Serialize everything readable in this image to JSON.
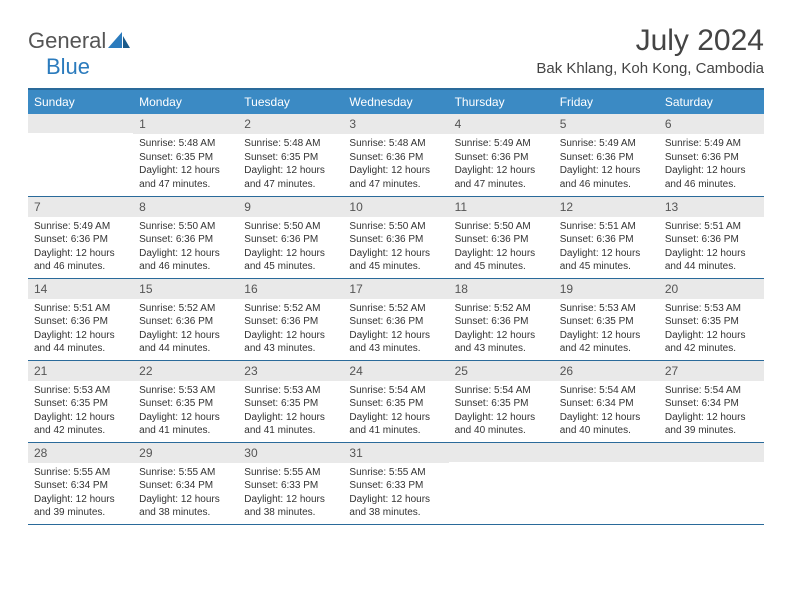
{
  "logo": {
    "general": "General",
    "blue": "Blue"
  },
  "title": "July 2024",
  "location": "Bak Khlang, Koh Kong, Cambodia",
  "weekdays": [
    "Sunday",
    "Monday",
    "Tuesday",
    "Wednesday",
    "Thursday",
    "Friday",
    "Saturday"
  ],
  "colors": {
    "header_bg": "#3b8ac4",
    "header_border": "#2a6a9a",
    "daynum_bg": "#e9e9e9",
    "text": "#333333",
    "logo_gray": "#555555",
    "logo_blue": "#2b7bbd"
  },
  "weeks": [
    [
      {
        "num": "",
        "sunrise": "",
        "sunset": "",
        "daylight": ""
      },
      {
        "num": "1",
        "sunrise": "Sunrise: 5:48 AM",
        "sunset": "Sunset: 6:35 PM",
        "daylight": "Daylight: 12 hours and 47 minutes."
      },
      {
        "num": "2",
        "sunrise": "Sunrise: 5:48 AM",
        "sunset": "Sunset: 6:35 PM",
        "daylight": "Daylight: 12 hours and 47 minutes."
      },
      {
        "num": "3",
        "sunrise": "Sunrise: 5:48 AM",
        "sunset": "Sunset: 6:36 PM",
        "daylight": "Daylight: 12 hours and 47 minutes."
      },
      {
        "num": "4",
        "sunrise": "Sunrise: 5:49 AM",
        "sunset": "Sunset: 6:36 PM",
        "daylight": "Daylight: 12 hours and 47 minutes."
      },
      {
        "num": "5",
        "sunrise": "Sunrise: 5:49 AM",
        "sunset": "Sunset: 6:36 PM",
        "daylight": "Daylight: 12 hours and 46 minutes."
      },
      {
        "num": "6",
        "sunrise": "Sunrise: 5:49 AM",
        "sunset": "Sunset: 6:36 PM",
        "daylight": "Daylight: 12 hours and 46 minutes."
      }
    ],
    [
      {
        "num": "7",
        "sunrise": "Sunrise: 5:49 AM",
        "sunset": "Sunset: 6:36 PM",
        "daylight": "Daylight: 12 hours and 46 minutes."
      },
      {
        "num": "8",
        "sunrise": "Sunrise: 5:50 AM",
        "sunset": "Sunset: 6:36 PM",
        "daylight": "Daylight: 12 hours and 46 minutes."
      },
      {
        "num": "9",
        "sunrise": "Sunrise: 5:50 AM",
        "sunset": "Sunset: 6:36 PM",
        "daylight": "Daylight: 12 hours and 45 minutes."
      },
      {
        "num": "10",
        "sunrise": "Sunrise: 5:50 AM",
        "sunset": "Sunset: 6:36 PM",
        "daylight": "Daylight: 12 hours and 45 minutes."
      },
      {
        "num": "11",
        "sunrise": "Sunrise: 5:50 AM",
        "sunset": "Sunset: 6:36 PM",
        "daylight": "Daylight: 12 hours and 45 minutes."
      },
      {
        "num": "12",
        "sunrise": "Sunrise: 5:51 AM",
        "sunset": "Sunset: 6:36 PM",
        "daylight": "Daylight: 12 hours and 45 minutes."
      },
      {
        "num": "13",
        "sunrise": "Sunrise: 5:51 AM",
        "sunset": "Sunset: 6:36 PM",
        "daylight": "Daylight: 12 hours and 44 minutes."
      }
    ],
    [
      {
        "num": "14",
        "sunrise": "Sunrise: 5:51 AM",
        "sunset": "Sunset: 6:36 PM",
        "daylight": "Daylight: 12 hours and 44 minutes."
      },
      {
        "num": "15",
        "sunrise": "Sunrise: 5:52 AM",
        "sunset": "Sunset: 6:36 PM",
        "daylight": "Daylight: 12 hours and 44 minutes."
      },
      {
        "num": "16",
        "sunrise": "Sunrise: 5:52 AM",
        "sunset": "Sunset: 6:36 PM",
        "daylight": "Daylight: 12 hours and 43 minutes."
      },
      {
        "num": "17",
        "sunrise": "Sunrise: 5:52 AM",
        "sunset": "Sunset: 6:36 PM",
        "daylight": "Daylight: 12 hours and 43 minutes."
      },
      {
        "num": "18",
        "sunrise": "Sunrise: 5:52 AM",
        "sunset": "Sunset: 6:36 PM",
        "daylight": "Daylight: 12 hours and 43 minutes."
      },
      {
        "num": "19",
        "sunrise": "Sunrise: 5:53 AM",
        "sunset": "Sunset: 6:35 PM",
        "daylight": "Daylight: 12 hours and 42 minutes."
      },
      {
        "num": "20",
        "sunrise": "Sunrise: 5:53 AM",
        "sunset": "Sunset: 6:35 PM",
        "daylight": "Daylight: 12 hours and 42 minutes."
      }
    ],
    [
      {
        "num": "21",
        "sunrise": "Sunrise: 5:53 AM",
        "sunset": "Sunset: 6:35 PM",
        "daylight": "Daylight: 12 hours and 42 minutes."
      },
      {
        "num": "22",
        "sunrise": "Sunrise: 5:53 AM",
        "sunset": "Sunset: 6:35 PM",
        "daylight": "Daylight: 12 hours and 41 minutes."
      },
      {
        "num": "23",
        "sunrise": "Sunrise: 5:53 AM",
        "sunset": "Sunset: 6:35 PM",
        "daylight": "Daylight: 12 hours and 41 minutes."
      },
      {
        "num": "24",
        "sunrise": "Sunrise: 5:54 AM",
        "sunset": "Sunset: 6:35 PM",
        "daylight": "Daylight: 12 hours and 41 minutes."
      },
      {
        "num": "25",
        "sunrise": "Sunrise: 5:54 AM",
        "sunset": "Sunset: 6:35 PM",
        "daylight": "Daylight: 12 hours and 40 minutes."
      },
      {
        "num": "26",
        "sunrise": "Sunrise: 5:54 AM",
        "sunset": "Sunset: 6:34 PM",
        "daylight": "Daylight: 12 hours and 40 minutes."
      },
      {
        "num": "27",
        "sunrise": "Sunrise: 5:54 AM",
        "sunset": "Sunset: 6:34 PM",
        "daylight": "Daylight: 12 hours and 39 minutes."
      }
    ],
    [
      {
        "num": "28",
        "sunrise": "Sunrise: 5:55 AM",
        "sunset": "Sunset: 6:34 PM",
        "daylight": "Daylight: 12 hours and 39 minutes."
      },
      {
        "num": "29",
        "sunrise": "Sunrise: 5:55 AM",
        "sunset": "Sunset: 6:34 PM",
        "daylight": "Daylight: 12 hours and 38 minutes."
      },
      {
        "num": "30",
        "sunrise": "Sunrise: 5:55 AM",
        "sunset": "Sunset: 6:33 PM",
        "daylight": "Daylight: 12 hours and 38 minutes."
      },
      {
        "num": "31",
        "sunrise": "Sunrise: 5:55 AM",
        "sunset": "Sunset: 6:33 PM",
        "daylight": "Daylight: 12 hours and 38 minutes."
      },
      {
        "num": "",
        "sunrise": "",
        "sunset": "",
        "daylight": ""
      },
      {
        "num": "",
        "sunrise": "",
        "sunset": "",
        "daylight": ""
      },
      {
        "num": "",
        "sunrise": "",
        "sunset": "",
        "daylight": ""
      }
    ]
  ]
}
